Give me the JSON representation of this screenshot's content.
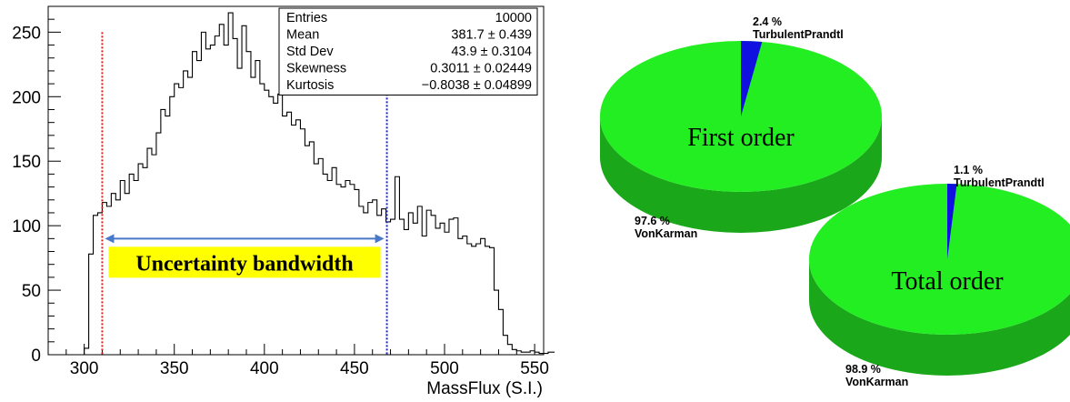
{
  "chart_data": [
    {
      "type": "histogram",
      "xlabel": "MassFlux (S.I.)",
      "xlim": [
        280,
        555
      ],
      "ylim": [
        0,
        270
      ],
      "xticks": [
        300,
        350,
        400,
        450,
        500,
        550
      ],
      "yticks": [
        0,
        50,
        100,
        150,
        200,
        250
      ],
      "bin_width": 2.5,
      "x_start": 300,
      "values": [
        5,
        78,
        108,
        110,
        118,
        115,
        125,
        120,
        135,
        125,
        140,
        135,
        148,
        145,
        160,
        155,
        172,
        190,
        185,
        200,
        210,
        207,
        220,
        215,
        235,
        228,
        250,
        237,
        240,
        247,
        256,
        240,
        265,
        245,
        222,
        255,
        235,
        215,
        228,
        210,
        205,
        200,
        195,
        202,
        185,
        188,
        178,
        182,
        175,
        162,
        165,
        148,
        152,
        140,
        135,
        145,
        132,
        130,
        135,
        132,
        128,
        115,
        110,
        118,
        120,
        108,
        113,
        103,
        105,
        138,
        105,
        97,
        110,
        102,
        115,
        92,
        112,
        108,
        98,
        102,
        95,
        105,
        106,
        90,
        92,
        86,
        84,
        86,
        90,
        84,
        83,
        50,
        35,
        15,
        8,
        4,
        3,
        2,
        2,
        3,
        2,
        1,
        1,
        2,
        2,
        3,
        1,
        2,
        3,
        1,
        2,
        3,
        1,
        2,
        1,
        1,
        1
      ],
      "stats": [
        {
          "label": "Entries",
          "value": "10000"
        },
        {
          "label": "Mean",
          "value": "381.7 ±  0.439"
        },
        {
          "label": "Std Dev",
          "value": "43.9 ± 0.3104"
        },
        {
          "label": "Skewness",
          "value": "0.3011 ± 0.02449"
        },
        {
          "label": "Kurtosis",
          "value": "−0.8038 ± 0.04899"
        }
      ],
      "vlines": [
        {
          "x": 310,
          "color": "#e02020"
        },
        {
          "x": 468,
          "color": "#2020e0"
        }
      ],
      "annotation": {
        "text": "Uncertainty bandwidth",
        "x_from": 310,
        "x_to": 468,
        "y": 90,
        "arrow_color": "#4a78c8",
        "box_color": "#ffff00"
      }
    },
    {
      "type": "pie",
      "title": "First order",
      "slices": [
        {
          "name": "TurbulentPrandtl",
          "value": 2.4,
          "label": "2.4 %",
          "color": "#1010e0"
        },
        {
          "name": "VonKarman",
          "value": 97.6,
          "label": "97.6 %",
          "color": "#22ee22"
        }
      ]
    },
    {
      "type": "pie",
      "title": "Total order",
      "slices": [
        {
          "name": "TurbulentPrandtl",
          "value": 1.1,
          "label": "1.1 %",
          "color": "#1010e0"
        },
        {
          "name": "VonKarman",
          "value": 98.9,
          "label": "98.9 %",
          "color": "#22ee22"
        }
      ]
    }
  ]
}
